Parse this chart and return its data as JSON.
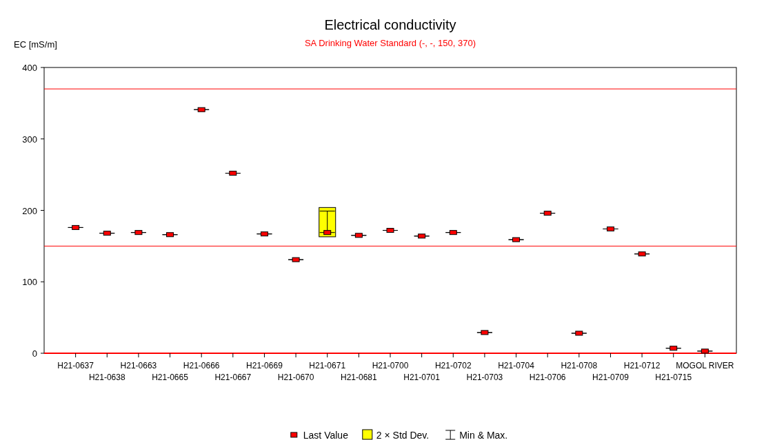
{
  "chart_data": {
    "type": "scatter",
    "title": "Electrical conductivity",
    "subtitle": "SA Drinking Water Standard (-, -, 150, 370)",
    "ylabel": "EC [mS/m]",
    "categories": [
      "H21-0637",
      "H21-0638",
      "H21-0663",
      "H21-0665",
      "H21-0666",
      "H21-0667",
      "H21-0669",
      "H21-0670",
      "H21-0671",
      "H21-0681",
      "H21-0700",
      "H21-0701",
      "H21-0702",
      "H21-0703",
      "H21-0704",
      "H21-0706",
      "H21-0708",
      "H21-0709",
      "H21-0712",
      "H21-0715",
      "MOGOL RIVER"
    ],
    "series": [
      {
        "name": "Last Value",
        "marker": "square",
        "color": "#ff0000",
        "values": [
          176,
          168,
          169,
          166,
          341,
          252,
          167,
          131,
          169,
          165,
          172,
          164,
          169,
          29,
          159,
          196,
          28,
          174,
          139,
          7,
          3
        ],
        "errors": [
          [
            176,
            176
          ],
          [
            168,
            168
          ],
          [
            169,
            169
          ],
          [
            166,
            166
          ],
          [
            341,
            341
          ],
          [
            252,
            252
          ],
          [
            167,
            167
          ],
          [
            131,
            131
          ],
          [
            169,
            199
          ],
          [
            165,
            165
          ],
          [
            172,
            172
          ],
          [
            164,
            164
          ],
          [
            169,
            169
          ],
          [
            29,
            29
          ],
          [
            159,
            159
          ],
          [
            196,
            196
          ],
          [
            28,
            28
          ],
          [
            174,
            174
          ],
          [
            139,
            139
          ],
          [
            7,
            7
          ],
          [
            3,
            3
          ]
        ]
      },
      {
        "name": "2 × Std Dev.",
        "type": "bar",
        "color": "#ffff00",
        "values": [
          null,
          null,
          null,
          null,
          null,
          null,
          null,
          null,
          41,
          null,
          null,
          null,
          null,
          null,
          null,
          null,
          null,
          null,
          null,
          null,
          null
        ],
        "base": [
          null,
          null,
          null,
          null,
          null,
          null,
          null,
          null,
          163,
          null,
          null,
          null,
          null,
          null,
          null,
          null,
          null,
          null,
          null,
          null,
          null
        ]
      }
    ],
    "annotations": [
      "Min & Max."
    ],
    "ylim": [
      0,
      400
    ],
    "yticks": [
      0,
      100,
      200,
      300,
      400
    ],
    "ref_lines": [
      {
        "axis": "y",
        "value": 150,
        "color": "#ff0000"
      },
      {
        "axis": "y",
        "value": 370,
        "color": "#ff0000"
      }
    ],
    "legend": "bottom",
    "grid": false
  }
}
